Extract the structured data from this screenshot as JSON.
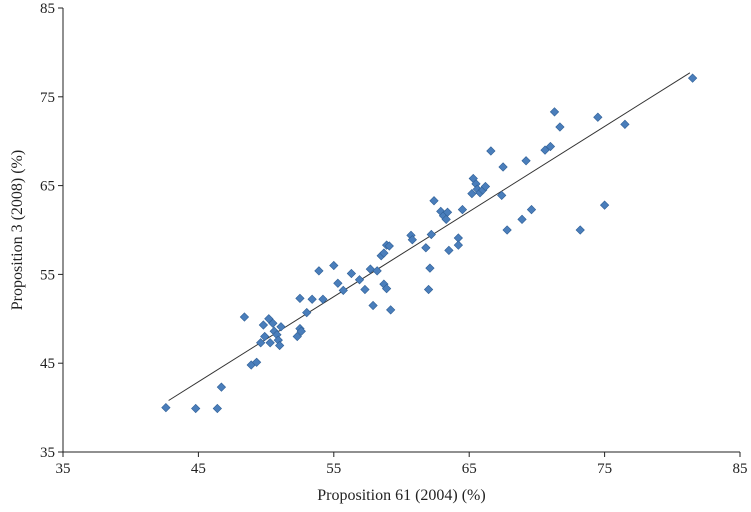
{
  "chart_data": {
    "type": "scatter",
    "title": "",
    "xlabel": "Proposition 61 (2004) (%)",
    "ylabel": "Proposition 3 (2008) (%)",
    "xlim": [
      35,
      85
    ],
    "ylim": [
      35,
      85
    ],
    "xticks": [
      35,
      45,
      55,
      65,
      75,
      85
    ],
    "yticks": [
      35,
      45,
      55,
      65,
      75,
      85
    ],
    "grid": false,
    "marker": "diamond",
    "colors": {
      "marker": "#4a7ebb",
      "marker_edge": "#2f5f96",
      "trendline": "#333333",
      "axis": "#222222"
    },
    "trendline": {
      "x": [
        42.8,
        81.3
      ],
      "y": [
        40.8,
        77.7
      ]
    },
    "series": [
      {
        "points": [
          [
            42.6,
            40.0
          ],
          [
            44.8,
            39.9
          ],
          [
            46.4,
            39.9
          ],
          [
            46.7,
            42.3
          ],
          [
            48.4,
            50.2
          ],
          [
            48.9,
            44.8
          ],
          [
            49.3,
            45.1
          ],
          [
            49.6,
            47.3
          ],
          [
            49.8,
            49.3
          ],
          [
            49.9,
            48.0
          ],
          [
            50.2,
            50.0
          ],
          [
            50.3,
            47.3
          ],
          [
            50.5,
            49.5
          ],
          [
            50.6,
            48.6
          ],
          [
            50.8,
            48.2
          ],
          [
            50.9,
            47.6
          ],
          [
            51.0,
            47.0
          ],
          [
            51.1,
            49.1
          ],
          [
            52.3,
            48.0
          ],
          [
            52.5,
            48.9
          ],
          [
            52.5,
            52.3
          ],
          [
            52.6,
            48.6
          ],
          [
            53.0,
            50.7
          ],
          [
            53.4,
            52.2
          ],
          [
            53.9,
            55.4
          ],
          [
            54.2,
            52.2
          ],
          [
            55.0,
            56.0
          ],
          [
            55.3,
            54.0
          ],
          [
            55.7,
            53.2
          ],
          [
            56.3,
            55.1
          ],
          [
            56.9,
            54.4
          ],
          [
            57.3,
            53.3
          ],
          [
            57.7,
            55.6
          ],
          [
            57.9,
            51.5
          ],
          [
            58.2,
            55.4
          ],
          [
            58.5,
            57.1
          ],
          [
            58.7,
            57.4
          ],
          [
            58.7,
            53.9
          ],
          [
            58.9,
            53.4
          ],
          [
            58.9,
            58.3
          ],
          [
            59.1,
            58.2
          ],
          [
            59.2,
            51.0
          ],
          [
            60.7,
            59.4
          ],
          [
            60.8,
            58.9
          ],
          [
            61.8,
            58.0
          ],
          [
            62.0,
            53.3
          ],
          [
            62.1,
            55.7
          ],
          [
            62.2,
            59.5
          ],
          [
            62.4,
            63.3
          ],
          [
            62.9,
            62.1
          ],
          [
            63.1,
            61.6
          ],
          [
            63.3,
            61.2
          ],
          [
            63.4,
            62.0
          ],
          [
            63.5,
            57.7
          ],
          [
            64.2,
            59.1
          ],
          [
            64.2,
            58.3
          ],
          [
            64.5,
            62.3
          ],
          [
            65.2,
            64.1
          ],
          [
            65.3,
            65.8
          ],
          [
            65.5,
            65.2
          ],
          [
            65.6,
            64.6
          ],
          [
            65.8,
            64.2
          ],
          [
            66.0,
            64.5
          ],
          [
            66.2,
            64.9
          ],
          [
            66.6,
            68.9
          ],
          [
            67.4,
            63.9
          ],
          [
            67.5,
            67.1
          ],
          [
            67.8,
            60.0
          ],
          [
            68.9,
            61.2
          ],
          [
            69.2,
            67.8
          ],
          [
            69.6,
            62.3
          ],
          [
            70.6,
            69.0
          ],
          [
            71.0,
            69.4
          ],
          [
            71.3,
            73.3
          ],
          [
            71.7,
            71.6
          ],
          [
            73.2,
            60.0
          ],
          [
            74.5,
            72.7
          ],
          [
            75.0,
            62.8
          ],
          [
            76.5,
            71.9
          ],
          [
            81.5,
            77.1
          ]
        ]
      }
    ]
  }
}
